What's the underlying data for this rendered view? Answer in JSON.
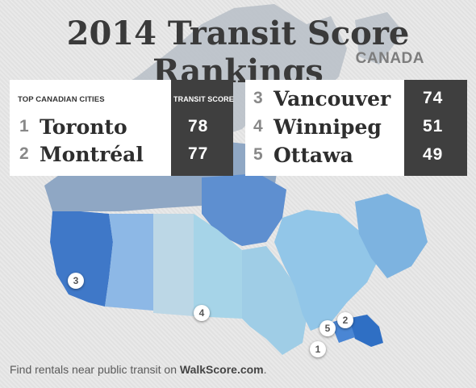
{
  "title": "2014 Transit Score Rankings",
  "country": "CANADA",
  "table_header": {
    "cities_label": "TOP CANADIAN CITIES",
    "score_label": "TRANSIT SCORE"
  },
  "rankings": [
    {
      "rank": "1",
      "city": "Toronto",
      "score": "78"
    },
    {
      "rank": "2",
      "city": "Montréal",
      "score": "77"
    },
    {
      "rank": "3",
      "city": "Vancouver",
      "score": "74"
    },
    {
      "rank": "4",
      "city": "Winnipeg",
      "score": "51"
    },
    {
      "rank": "5",
      "city": "Ottawa",
      "score": "49"
    }
  ],
  "map_markers": [
    "3",
    "4",
    "5",
    "2",
    "1"
  ],
  "footer": {
    "text": "Find rentals near public transit on ",
    "brand": "WalkScore.com",
    "suffix": "."
  },
  "colors": {
    "title": "#3a3a3a",
    "score_panel": "#3f3f3f",
    "map_dark_blue": "#3f78c8",
    "map_light_blue": "#9fcde6",
    "map_north": "#b9bfc7"
  }
}
